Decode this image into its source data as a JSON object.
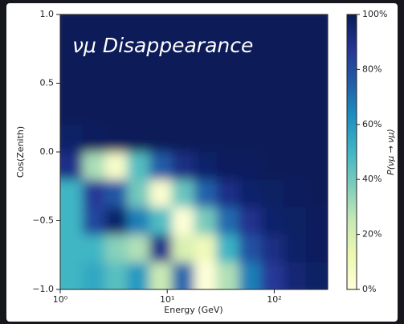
{
  "chart_data": {
    "type": "heatmap",
    "title": "νμ Disappearance",
    "xlabel": "Energy (GeV)",
    "ylabel": "Cos(Zenith)",
    "colorbar_label": "P(νμ → νμ)",
    "xscale": "log",
    "xlim": [
      1,
      316
    ],
    "xticks": [
      {
        "value": 1,
        "label": "10⁰"
      },
      {
        "value": 10,
        "label": "10¹"
      },
      {
        "value": 100,
        "label": "10²"
      }
    ],
    "ylim": [
      -1,
      1
    ],
    "yticks": [
      {
        "value": -1,
        "label": "−1.0"
      },
      {
        "value": -0.5,
        "label": "−0.5"
      },
      {
        "value": 0,
        "label": "0.0"
      },
      {
        "value": 0.5,
        "label": "0.5"
      },
      {
        "value": 1,
        "label": "1.0"
      }
    ],
    "xbins": [
      1,
      1.616,
      2.61,
      4.22,
      6.81,
      11.0,
      17.8,
      28.7,
      46.4,
      75.0,
      121,
      196,
      316
    ],
    "ybins": [
      -1,
      -0.8,
      -0.6,
      -0.4,
      -0.2,
      0,
      0.2,
      0.4,
      0.6,
      0.8,
      1
    ],
    "z": [
      [
        50,
        55,
        45,
        60,
        24,
        73,
        0,
        29,
        67,
        86,
        94,
        98
      ],
      [
        50,
        50,
        36,
        29,
        90,
        19,
        10,
        51,
        79,
        91,
        97,
        99
      ],
      [
        50,
        82,
        96,
        67,
        47,
        1,
        39,
        72,
        89,
        96,
        98,
        99
      ],
      [
        50,
        86,
        77,
        40,
        3,
        42,
        74,
        90,
        96,
        98,
        99,
        100
      ],
      [
        90,
        30,
        5,
        46,
        76,
        91,
        96,
        99,
        99,
        100,
        100,
        100
      ],
      [
        97,
        99,
        100,
        100,
        100,
        100,
        100,
        100,
        100,
        100,
        100,
        100
      ],
      [
        100,
        100,
        100,
        100,
        100,
        100,
        100,
        100,
        100,
        100,
        100,
        100
      ],
      [
        100,
        100,
        100,
        100,
        100,
        100,
        100,
        100,
        100,
        100,
        100,
        100
      ],
      [
        100,
        100,
        100,
        100,
        100,
        100,
        100,
        100,
        100,
        100,
        100,
        100
      ],
      [
        100,
        100,
        100,
        100,
        100,
        100,
        100,
        100,
        100,
        100,
        100,
        100
      ]
    ],
    "colormap": [
      "#ffffd9",
      "#edf8b1",
      "#c7e9b4",
      "#7fcdbb",
      "#41b6c4",
      "#1d91c0",
      "#225ea8",
      "#253494",
      "#081d58"
    ],
    "clim": [
      0,
      100
    ],
    "cticks": [
      {
        "value": 0,
        "label": "0%"
      },
      {
        "value": 20,
        "label": "20%"
      },
      {
        "value": 40,
        "label": "40%"
      },
      {
        "value": 60,
        "label": "60%"
      },
      {
        "value": 80,
        "label": "80%"
      },
      {
        "value": 100,
        "label": "100%"
      }
    ]
  }
}
